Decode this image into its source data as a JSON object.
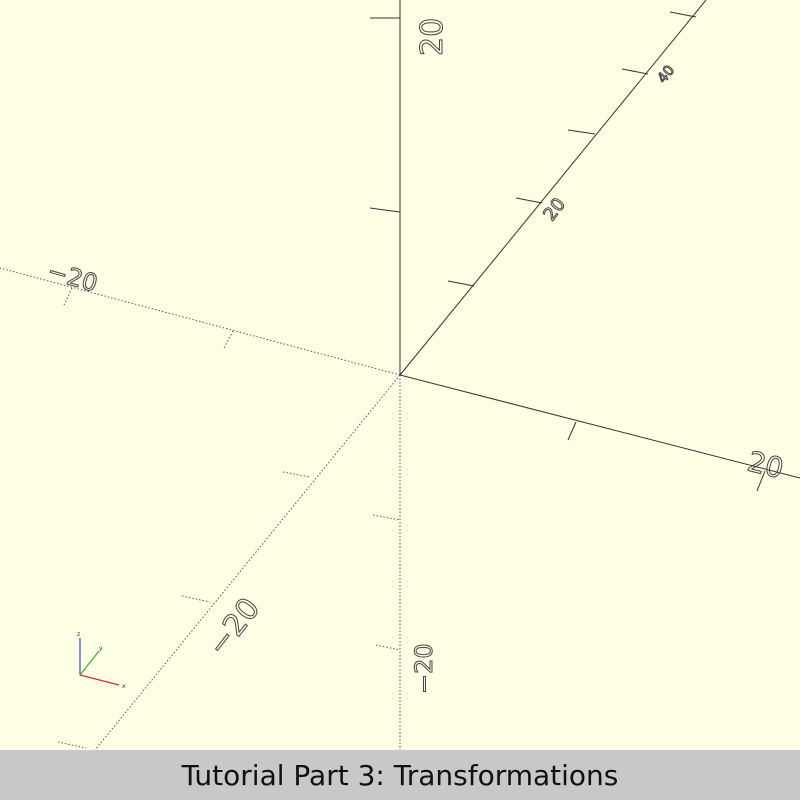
{
  "caption": {
    "text": "Tutorial Part 3: Transformations"
  },
  "viewport": {
    "background": "#ffffe5",
    "axis_color": "#333333"
  },
  "axes_labels": {
    "z_pos_20": "20",
    "z_neg_20": "−20",
    "y_pos_20": "20",
    "y_pos_40": "40",
    "y_neg_20": "−20",
    "x_pos_20": "20",
    "x_neg_20": "−20"
  },
  "gizmo": {
    "x_label": "x",
    "y_label": "y",
    "z_label": "z",
    "x_color": "#d03030",
    "y_color": "#30b030",
    "z_color": "#3050d0"
  }
}
